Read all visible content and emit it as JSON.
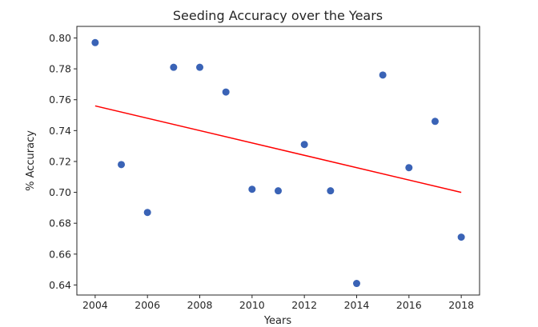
{
  "chart_data": {
    "type": "scatter",
    "title": "Seeding Accuracy over the Years",
    "xlabel": "Years",
    "ylabel": "% Accuracy",
    "xlim": [
      2003.3,
      2018.7
    ],
    "ylim": [
      0.6335,
      0.8075
    ],
    "xticks": [
      2004,
      2006,
      2008,
      2010,
      2012,
      2014,
      2016,
      2018
    ],
    "yticks": [
      0.64,
      0.66,
      0.68,
      0.7,
      0.72,
      0.74,
      0.76,
      0.78,
      0.8
    ],
    "x": [
      2004,
      2005,
      2006,
      2007,
      2008,
      2009,
      2010,
      2011,
      2012,
      2013,
      2014,
      2015,
      2016,
      2017,
      2018
    ],
    "y": [
      0.797,
      0.718,
      0.687,
      0.781,
      0.781,
      0.765,
      0.702,
      0.701,
      0.731,
      0.701,
      0.641,
      0.776,
      0.716,
      0.746,
      0.671
    ],
    "trendline": {
      "x": [
        2004,
        2018
      ],
      "y": [
        0.756,
        0.7
      ]
    },
    "grid": false,
    "colors": {
      "points": "#3a63b6",
      "trendline": "#ff0000"
    }
  }
}
